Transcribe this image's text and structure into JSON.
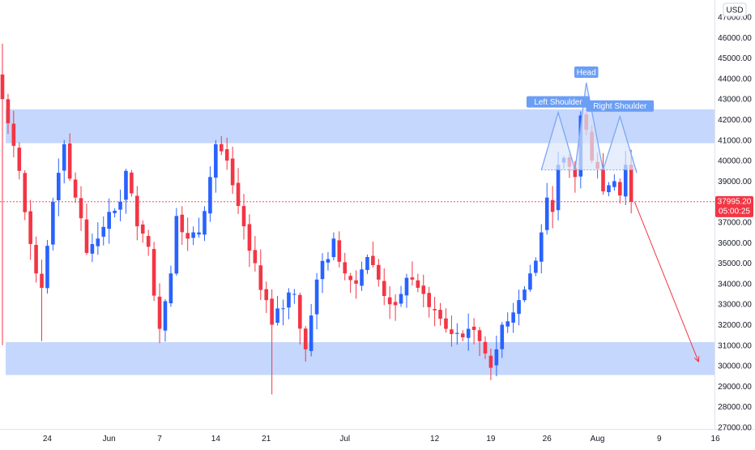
{
  "currency": "USD",
  "price_tag": {
    "price": "37995.20",
    "countdown": "05:00:25",
    "color": "#f23645"
  },
  "colors": {
    "up": "#2962ff",
    "down": "#f23645",
    "zone": "#bbd0fb",
    "pattern_fill": "#dce7fb",
    "pattern_line": "#7aa7f5",
    "label_bg": "#6b9ef5"
  },
  "chart_data": {
    "type": "candlestick",
    "timeframe_note": "",
    "ylim": [
      27000,
      47500
    ],
    "y_ticks": [
      27000,
      28000,
      29000,
      30000,
      31000,
      32000,
      33000,
      34000,
      35000,
      36000,
      37000,
      38000,
      39000,
      40000,
      41000,
      42000,
      43000,
      44000,
      45000,
      46000,
      47000
    ],
    "y_tick_labels": [
      "27000.00",
      "28000.00",
      "29000.00",
      "30000.00",
      "31000.00",
      "32000.00",
      "33000.00",
      "34000.00",
      "35000.00",
      "36000.00",
      "37000.00",
      "38000.00",
      "39000.00",
      "40000.00",
      "41000.00",
      "42000.00",
      "43000.00",
      "44000.00",
      "45000.00",
      "46000.00",
      "47000.00"
    ],
    "x_tick_labels": [
      {
        "label": "24",
        "bar": 8
      },
      {
        "label": "Jun",
        "bar": 19
      },
      {
        "label": "7",
        "bar": 28
      },
      {
        "label": "14",
        "bar": 38
      },
      {
        "label": "21",
        "bar": 47
      },
      {
        "label": "Jul",
        "bar": 61
      },
      {
        "label": "12",
        "bar": 77
      },
      {
        "label": "19",
        "bar": 87
      },
      {
        "label": "26",
        "bar": 97
      },
      {
        "label": "Aug",
        "bar": 106
      },
      {
        "label": "9",
        "bar": 117
      },
      {
        "label": "16",
        "bar": 127
      }
    ],
    "last_price": 37995.2,
    "ohlc_anchors": [
      {
        "bar": 0,
        "close": 43000,
        "low": 31000,
        "high": 45700
      },
      {
        "bar": 3,
        "close": 39500
      },
      {
        "bar": 6,
        "close": 34500
      },
      {
        "bar": 7,
        "close": 33800,
        "low": 31200
      },
      {
        "bar": 9,
        "close": 38000
      },
      {
        "bar": 11,
        "close": 40800,
        "high": 41000
      },
      {
        "bar": 13,
        "close": 38200
      },
      {
        "bar": 15,
        "close": 35500
      },
      {
        "bar": 17,
        "close": 36200
      },
      {
        "bar": 19,
        "close": 37500
      },
      {
        "bar": 21,
        "close": 38000
      },
      {
        "bar": 22,
        "close": 39500,
        "high": 39600
      },
      {
        "bar": 24,
        "close": 36800
      },
      {
        "bar": 26,
        "close": 35800
      },
      {
        "bar": 28,
        "close": 31800,
        "low": 31100
      },
      {
        "bar": 30,
        "close": 34500
      },
      {
        "bar": 31,
        "close": 37300
      },
      {
        "bar": 33,
        "close": 36200
      },
      {
        "bar": 35,
        "close": 36500
      },
      {
        "bar": 37,
        "close": 39200
      },
      {
        "bar": 38,
        "close": 40800,
        "high": 41000
      },
      {
        "bar": 40,
        "close": 40000
      },
      {
        "bar": 41,
        "close": 38800
      },
      {
        "bar": 43,
        "close": 36800
      },
      {
        "bar": 45,
        "close": 35000
      },
      {
        "bar": 47,
        "close": 33200
      },
      {
        "bar": 48,
        "close": 32000,
        "low": 28600
      },
      {
        "bar": 50,
        "close": 32800
      },
      {
        "bar": 52,
        "close": 33500
      },
      {
        "bar": 54,
        "close": 30800,
        "low": 30200
      },
      {
        "bar": 56,
        "close": 34200
      },
      {
        "bar": 58,
        "close": 35200
      },
      {
        "bar": 59,
        "close": 36200,
        "high": 36500
      },
      {
        "bar": 61,
        "close": 34500
      },
      {
        "bar": 63,
        "close": 34000
      },
      {
        "bar": 65,
        "close": 35300
      },
      {
        "bar": 67,
        "close": 34200
      },
      {
        "bar": 69,
        "close": 33000
      },
      {
        "bar": 71,
        "close": 33500
      },
      {
        "bar": 73,
        "close": 34200
      },
      {
        "bar": 75,
        "close": 33500
      },
      {
        "bar": 77,
        "close": 32700
      },
      {
        "bar": 79,
        "close": 31800
      },
      {
        "bar": 81,
        "close": 31600
      },
      {
        "bar": 83,
        "close": 31800
      },
      {
        "bar": 85,
        "close": 31200
      },
      {
        "bar": 86,
        "close": 30600
      },
      {
        "bar": 87,
        "close": 29900,
        "low": 29300
      },
      {
        "bar": 88,
        "close": 30800
      },
      {
        "bar": 89,
        "close": 32000
      },
      {
        "bar": 91,
        "close": 32600
      },
      {
        "bar": 92,
        "close": 33200
      },
      {
        "bar": 94,
        "close": 34500
      },
      {
        "bar": 96,
        "close": 36500
      },
      {
        "bar": 97,
        "close": 38200
      },
      {
        "bar": 98,
        "close": 37500
      },
      {
        "bar": 99,
        "close": 39800
      },
      {
        "bar": 101,
        "close": 39700
      },
      {
        "bar": 102,
        "close": 39200
      },
      {
        "bar": 103,
        "close": 42200,
        "high": 42400
      },
      {
        "bar": 104,
        "close": 41500
      },
      {
        "bar": 105,
        "close": 40000
      },
      {
        "bar": 106,
        "close": 39600
      },
      {
        "bar": 107,
        "close": 38500
      },
      {
        "bar": 108,
        "close": 38800
      },
      {
        "bar": 109,
        "close": 39000
      },
      {
        "bar": 110,
        "close": 38300
      },
      {
        "bar": 111,
        "close": 39800
      },
      {
        "bar": 112,
        "close": 37995.2
      }
    ],
    "zones": [
      {
        "from": 40850,
        "to": 42500
      },
      {
        "from": 29550,
        "to": 31150
      }
    ],
    "pattern": {
      "baseline_price": 39550,
      "points": [
        {
          "bar": 96,
          "price": 39550
        },
        {
          "bar": 99,
          "price": 42350
        },
        {
          "bar": 102,
          "price": 39550
        },
        {
          "bar": 104,
          "price": 43800
        },
        {
          "bar": 107,
          "price": 39550
        },
        {
          "bar": 110,
          "price": 42150
        },
        {
          "bar": 113,
          "price": 39400
        }
      ],
      "labels": [
        {
          "text": "Left Shoulder",
          "bar": 99,
          "price": 42350
        },
        {
          "text": "Head",
          "bar": 104,
          "price": 43800
        },
        {
          "text": "Right Shoulder",
          "bar": 110,
          "price": 42150
        }
      ]
    },
    "projection_arrow": {
      "from": {
        "bar": 112.6,
        "price": 37995.2
      },
      "to": {
        "bar": 124,
        "price": 30200
      }
    }
  }
}
